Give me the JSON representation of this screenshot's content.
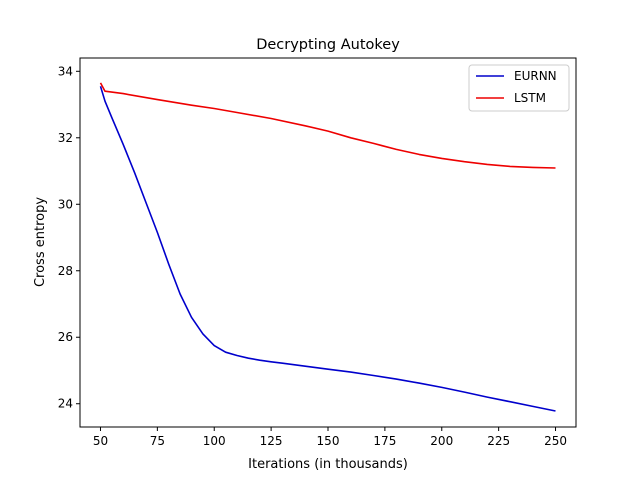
{
  "chart_data": {
    "type": "line",
    "title": "Decrypting Autokey",
    "xlabel": "Iterations (in thousands)",
    "ylabel": "Cross entropy",
    "xlim": [
      41,
      259
    ],
    "ylim": [
      23.3,
      34.4
    ],
    "xticks": [
      50,
      75,
      100,
      125,
      150,
      175,
      200,
      225,
      250
    ],
    "yticks": [
      24,
      26,
      28,
      30,
      32,
      34
    ],
    "grid": false,
    "legend_position": "top-right",
    "series": [
      {
        "name": "EURNN",
        "color": "#0000cc",
        "x": [
          50,
          52,
          55,
          60,
          65,
          70,
          75,
          80,
          85,
          90,
          95,
          100,
          105,
          110,
          115,
          120,
          125,
          130,
          140,
          150,
          160,
          170,
          180,
          190,
          200,
          210,
          220,
          230,
          240,
          250
        ],
        "y": [
          33.55,
          33.1,
          32.6,
          31.8,
          30.95,
          30.05,
          29.15,
          28.2,
          27.3,
          26.6,
          26.1,
          25.75,
          25.55,
          25.45,
          25.37,
          25.31,
          25.26,
          25.22,
          25.13,
          25.04,
          24.95,
          24.85,
          24.74,
          24.62,
          24.49,
          24.35,
          24.2,
          24.06,
          23.92,
          23.78
        ]
      },
      {
        "name": "LSTM",
        "color": "#ee0000",
        "x": [
          50,
          52,
          60,
          75,
          90,
          100,
          110,
          125,
          140,
          150,
          160,
          170,
          180,
          190,
          200,
          210,
          220,
          230,
          240,
          250
        ],
        "y": [
          33.65,
          33.4,
          33.33,
          33.15,
          32.98,
          32.88,
          32.76,
          32.58,
          32.36,
          32.2,
          32.0,
          31.83,
          31.65,
          31.5,
          31.38,
          31.28,
          31.2,
          31.14,
          31.11,
          31.09
        ]
      }
    ]
  }
}
